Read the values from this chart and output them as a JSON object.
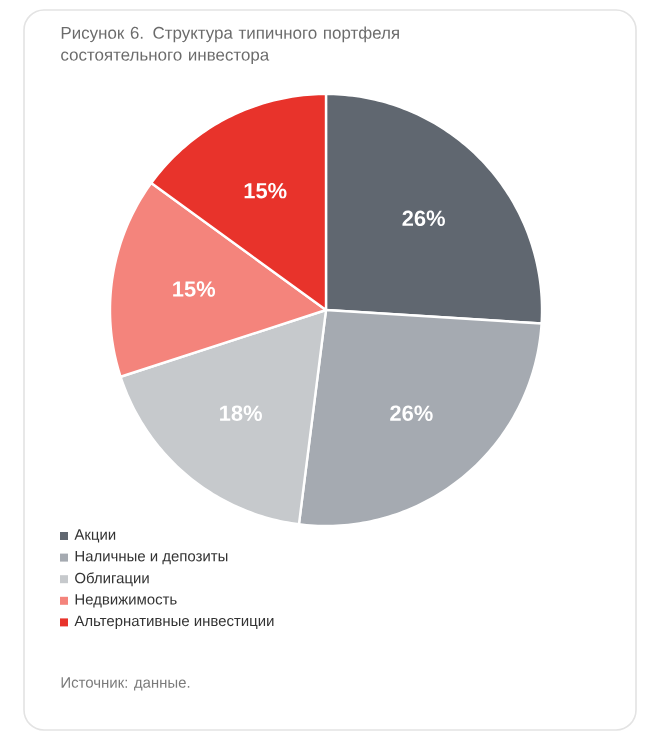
{
  "chart_data": {
    "type": "pie",
    "title": "Рисунок 6. Структура типичного портфеля состоятельного инвестора",
    "categories": [
      "Акции",
      "Наличные и депозиты",
      "Облигации",
      "Недвижимость",
      "Альтернативные инвестиции"
    ],
    "values": [
      26,
      26,
      18,
      15,
      15
    ],
    "value_labels": [
      "26%",
      "26%",
      "18%",
      "15%",
      "15%"
    ],
    "colors": [
      "#606770",
      "#a5aab1",
      "#c6c9cc",
      "#f4847c",
      "#e8332b"
    ],
    "legend": "bottom left",
    "annotations": [
      "Источник: данные."
    ]
  }
}
